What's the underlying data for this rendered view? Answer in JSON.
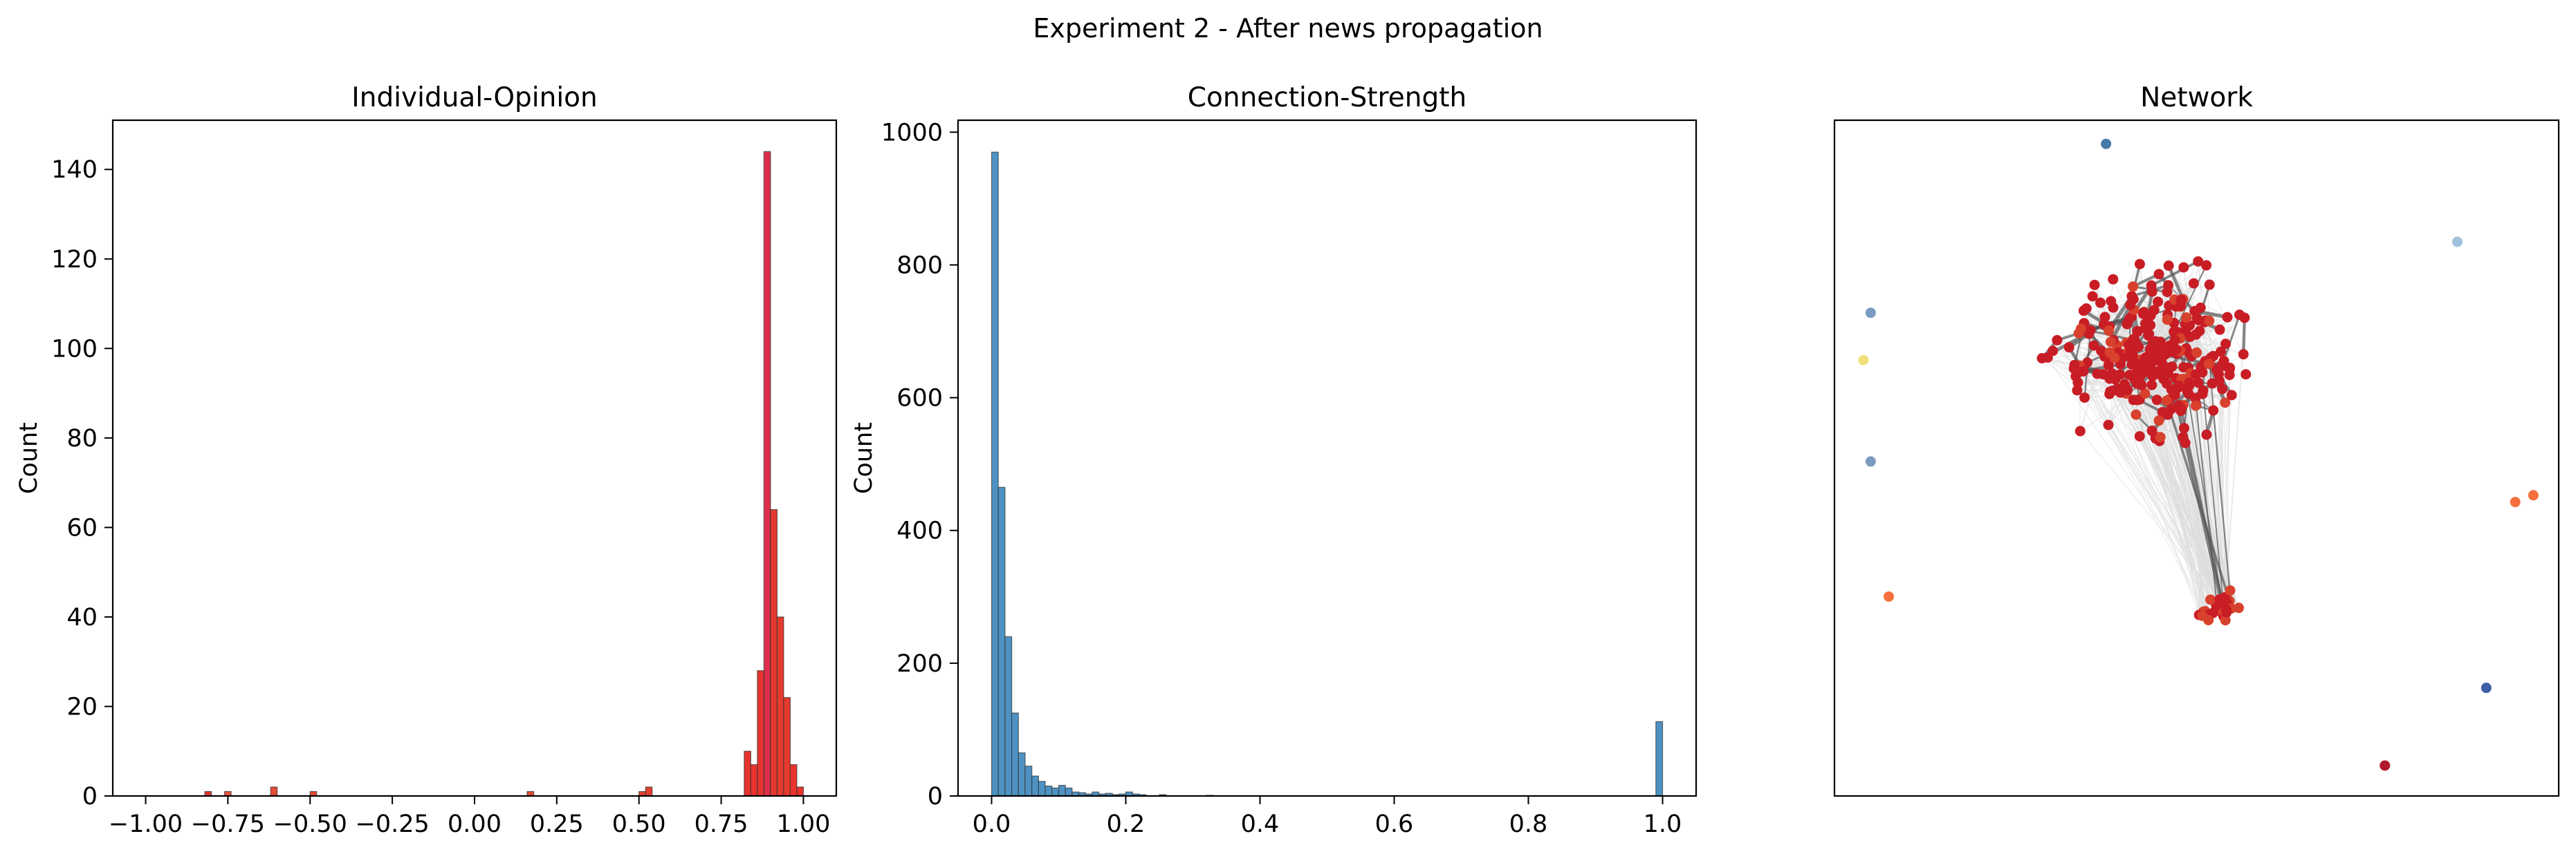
{
  "figure": {
    "suptitle": "Experiment 2 - After news propagation"
  },
  "chart_data": [
    {
      "type": "bar",
      "title": "Individual-Opinion",
      "xlabel": "",
      "ylabel": "Count",
      "xlim": [
        -1.1,
        1.1
      ],
      "ylim": [
        0,
        151
      ],
      "xticks": [
        -1.0,
        -0.75,
        -0.5,
        -0.25,
        0.0,
        0.25,
        0.5,
        0.75,
        1.0
      ],
      "xtick_labels": [
        "−1.00",
        "−0.75",
        "−0.50",
        "−0.25",
        "0.00",
        "0.25",
        "0.50",
        "0.75",
        "1.00"
      ],
      "yticks": [
        0,
        20,
        40,
        60,
        80,
        100,
        120,
        140
      ],
      "ytick_labels": [
        "0",
        "20",
        "40",
        "60",
        "80",
        "100",
        "120",
        "140"
      ],
      "grid": false,
      "bin_width": 0.02,
      "bins": [
        {
          "x": -0.82,
          "count": 1,
          "color": "#e0362c"
        },
        {
          "x": -0.76,
          "count": 1,
          "color": "#e8553a"
        },
        {
          "x": -0.62,
          "count": 2,
          "color": "#e54c35"
        },
        {
          "x": -0.5,
          "count": 1,
          "color": "#e44a33"
        },
        {
          "x": 0.16,
          "count": 1,
          "color": "#e54a34"
        },
        {
          "x": 0.5,
          "count": 1,
          "color": "#e24532"
        },
        {
          "x": 0.52,
          "count": 2,
          "color": "#e13f30"
        },
        {
          "x": 0.82,
          "count": 10,
          "color": "#e8342e"
        },
        {
          "x": 0.84,
          "count": 7,
          "color": "#e8342e"
        },
        {
          "x": 0.86,
          "count": 28,
          "color": "#e8342e"
        },
        {
          "x": 0.88,
          "count": 144,
          "color": "#dc2e4a"
        },
        {
          "x": 0.9,
          "count": 64,
          "color": "#e33a30"
        },
        {
          "x": 0.92,
          "count": 40,
          "color": "#e63a2e"
        },
        {
          "x": 0.94,
          "count": 22,
          "color": "#e63a2e"
        },
        {
          "x": 0.96,
          "count": 7,
          "color": "#e8342e"
        },
        {
          "x": 0.98,
          "count": 2,
          "color": "#e8342e"
        }
      ]
    },
    {
      "type": "bar",
      "title": "Connection-Strength",
      "xlabel": "",
      "ylabel": "Count",
      "xlim": [
        -0.05,
        1.05
      ],
      "ylim": [
        0,
        1018
      ],
      "xticks": [
        0.0,
        0.2,
        0.4,
        0.6,
        0.8,
        1.0
      ],
      "xtick_labels": [
        "0.0",
        "0.2",
        "0.4",
        "0.6",
        "0.8",
        "1.0"
      ],
      "yticks": [
        0,
        200,
        400,
        600,
        800,
        1000
      ],
      "ytick_labels": [
        "0",
        "200",
        "400",
        "600",
        "800",
        "1000"
      ],
      "grid": false,
      "bin_width": 0.01,
      "color": "#4d92c3",
      "bins": [
        {
          "x": 0.0,
          "count": 970
        },
        {
          "x": 0.01,
          "count": 465
        },
        {
          "x": 0.02,
          "count": 240
        },
        {
          "x": 0.03,
          "count": 125
        },
        {
          "x": 0.04,
          "count": 65
        },
        {
          "x": 0.05,
          "count": 45
        },
        {
          "x": 0.06,
          "count": 30
        },
        {
          "x": 0.07,
          "count": 22
        },
        {
          "x": 0.08,
          "count": 15
        },
        {
          "x": 0.09,
          "count": 12
        },
        {
          "x": 0.1,
          "count": 16
        },
        {
          "x": 0.11,
          "count": 12
        },
        {
          "x": 0.12,
          "count": 6
        },
        {
          "x": 0.13,
          "count": 5
        },
        {
          "x": 0.14,
          "count": 3
        },
        {
          "x": 0.15,
          "count": 6
        },
        {
          "x": 0.16,
          "count": 3
        },
        {
          "x": 0.17,
          "count": 4
        },
        {
          "x": 0.18,
          "count": 2
        },
        {
          "x": 0.19,
          "count": 3
        },
        {
          "x": 0.2,
          "count": 6
        },
        {
          "x": 0.21,
          "count": 3
        },
        {
          "x": 0.22,
          "count": 2
        },
        {
          "x": 0.25,
          "count": 2
        },
        {
          "x": 0.32,
          "count": 1
        },
        {
          "x": 0.99,
          "count": 112
        }
      ]
    },
    {
      "type": "scatter",
      "title": "Network",
      "xlabel": "",
      "ylabel": "",
      "axes_ticks": false,
      "xlim": [
        0,
        100
      ],
      "ylim": [
        0,
        100
      ],
      "cluster": {
        "node_count": 300,
        "node_color": "#c81d25",
        "node_color_alt": "#d8412c",
        "center": [
          44,
          65
        ],
        "spread": [
          14,
          16
        ],
        "subcluster": {
          "center": [
            53,
            28
          ],
          "spread": [
            3.5,
            3
          ],
          "node_count": 30
        }
      },
      "edge_color_light": "#dcdcdc",
      "edge_color_dark": "#555555",
      "outlier_nodes": [
        {
          "x": 37.5,
          "y": 96.5,
          "color": "#4878a8"
        },
        {
          "x": 86,
          "y": 82,
          "color": "#9ec1de"
        },
        {
          "x": 5,
          "y": 71.5,
          "color": "#7b9cc0"
        },
        {
          "x": 4,
          "y": 64.5,
          "color": "#f0e27a"
        },
        {
          "x": 5,
          "y": 49.5,
          "color": "#7b9cc0"
        },
        {
          "x": 96.5,
          "y": 44.5,
          "color": "#f5703c"
        },
        {
          "x": 94,
          "y": 43.5,
          "color": "#f5703c"
        },
        {
          "x": 7.5,
          "y": 29.5,
          "color": "#f5703c"
        },
        {
          "x": 90,
          "y": 16,
          "color": "#3f5ea8"
        },
        {
          "x": 76,
          "y": 4.5,
          "color": "#b2182b"
        }
      ]
    }
  ]
}
